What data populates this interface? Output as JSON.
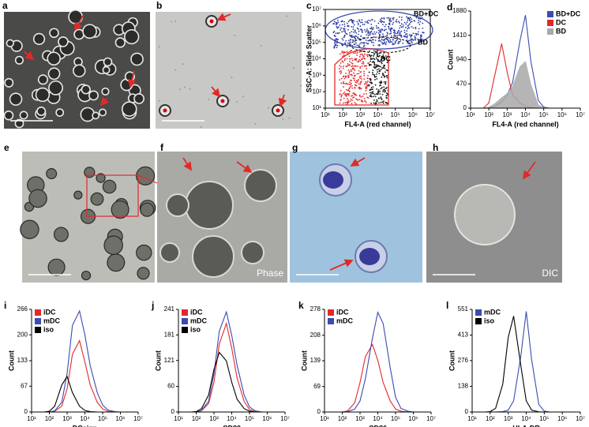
{
  "images": [
    {
      "panel": "a"
    },
    {
      "panel": "b"
    },
    {
      "panel": "e"
    },
    {
      "panel": "f",
      "caption": "Phase"
    },
    {
      "panel": "g"
    },
    {
      "panel": "h",
      "caption": "DIC"
    }
  ],
  "chart_data": [
    {
      "type": "scatter",
      "panel": "c",
      "xlabel": "FL4-A (red channel)",
      "ylabel": "SSC-A: Side Scatter",
      "annotations": [
        "BD+DC",
        "BD",
        "DC"
      ],
      "log": true,
      "xlim": [
        10,
        10000000
      ],
      "ylim": [
        10,
        10000000
      ],
      "xticks": [
        {
          "value": 10,
          "label": "10¹"
        },
        {
          "value": 100,
          "label": "10²"
        },
        {
          "value": 1000,
          "label": "10³"
        },
        {
          "value": 10000,
          "label": "10⁴"
        },
        {
          "value": 100000,
          "label": "10⁵"
        },
        {
          "value": 1000000,
          "label": "10⁶"
        },
        {
          "value": 10000000,
          "label": "10⁷"
        }
      ],
      "yticks": [
        {
          "value": 10,
          "label": "10¹"
        },
        {
          "value": 100,
          "label": "10²"
        },
        {
          "value": 1000,
          "label": "10³"
        },
        {
          "value": 10000,
          "label": "10⁴"
        },
        {
          "value": 100000,
          "label": "10⁵"
        },
        {
          "value": 1000000,
          "label": "10⁶"
        },
        {
          "value": 10000000,
          "label": "10⁷"
        }
      ]
    },
    {
      "type": "histogram",
      "panel": "d",
      "xlabel": "FL4-A (red channel)",
      "ylabel": "Count",
      "log": true,
      "legend": "upper right",
      "x": [
        10,
        20,
        50,
        100,
        200,
        500,
        1000,
        2000,
        5000,
        10000,
        20000,
        50000,
        100000,
        200000,
        500000,
        1000000,
        2000000,
        5000000,
        10000000
      ],
      "series": [
        {
          "name": "BD+DC",
          "color": "#3b4bb0",
          "values": [
            0,
            0,
            0,
            5,
            30,
            120,
            250,
            500,
            1300,
            1800,
            900,
            150,
            20,
            0,
            0,
            0,
            0,
            0,
            0
          ]
        },
        {
          "name": "DC",
          "color": "#e02a2a",
          "values": [
            0,
            0,
            0,
            100,
            600,
            1250,
            700,
            250,
            100,
            40,
            10,
            0,
            0,
            0,
            0,
            0,
            0,
            0,
            0
          ]
        },
        {
          "name": "BD",
          "color": "#a9a9a9",
          "filled": true,
          "values": [
            0,
            0,
            0,
            20,
            80,
            200,
            280,
            420,
            800,
            900,
            450,
            60,
            10,
            0,
            0,
            0,
            0,
            0,
            0
          ]
        }
      ],
      "xlim": [
        10,
        10000000
      ],
      "ylim": [
        0,
        1880
      ],
      "yticks": [
        0,
        470,
        940,
        1410,
        1880
      ],
      "xticks": [
        {
          "value": 10,
          "label": "10¹"
        },
        {
          "value": 100,
          "label": "10²"
        },
        {
          "value": 1000,
          "label": "10³"
        },
        {
          "value": 10000,
          "label": "10⁴"
        },
        {
          "value": 100000,
          "label": "10⁵"
        },
        {
          "value": 1000000,
          "label": "10⁶"
        },
        {
          "value": 10000000,
          "label": "10⁷"
        }
      ]
    },
    {
      "type": "histogram",
      "panel": "i",
      "xlabel": "DCsign",
      "ylabel": "Count",
      "log": true,
      "legend": "upper left",
      "x": [
        10,
        20,
        50,
        100,
        200,
        500,
        1000,
        2000,
        5000,
        10000,
        20000,
        50000,
        100000,
        200000,
        500000,
        1000000,
        2000000,
        5000000,
        10000000
      ],
      "series": [
        {
          "name": "iDC",
          "color": "#e02a2a",
          "values": [
            0,
            0,
            0,
            0,
            2,
            15,
            60,
            150,
            185,
            130,
            70,
            25,
            8,
            2,
            0,
            0,
            0,
            0,
            0
          ]
        },
        {
          "name": "mDC",
          "color": "#3b4bb0",
          "values": [
            0,
            0,
            0,
            0,
            3,
            25,
            100,
            225,
            262,
            200,
            120,
            50,
            18,
            5,
            1,
            0,
            0,
            0,
            0
          ]
        },
        {
          "name": "iso",
          "color": "#000000",
          "values": [
            0,
            0,
            0,
            2,
            15,
            70,
            92,
            50,
            15,
            4,
            1,
            0,
            0,
            0,
            0,
            0,
            0,
            0,
            0
          ]
        }
      ],
      "xlim": [
        10,
        10000000
      ],
      "ylim": [
        0,
        266
      ],
      "yticks": [
        0,
        67,
        133,
        200,
        266
      ],
      "xticks": [
        {
          "value": 10,
          "label": "10¹"
        },
        {
          "value": 100,
          "label": "10²"
        },
        {
          "value": 1000,
          "label": "10³"
        },
        {
          "value": 10000,
          "label": "10⁴"
        },
        {
          "value": 100000,
          "label": "10⁵"
        },
        {
          "value": 1000000,
          "label": "10⁶"
        },
        {
          "value": 10000000,
          "label": "10⁷"
        }
      ]
    },
    {
      "type": "histogram",
      "panel": "j",
      "xlabel": "CD80",
      "ylabel": "Count",
      "log": true,
      "legend": "upper left",
      "x": [
        10,
        20,
        50,
        100,
        200,
        500,
        1000,
        2000,
        5000,
        10000,
        20000,
        50000,
        100000,
        200000,
        500000,
        1000000,
        2000000,
        5000000,
        10000000
      ],
      "series": [
        {
          "name": "iDC",
          "color": "#e02a2a",
          "values": [
            0,
            0,
            0,
            0,
            3,
            20,
            70,
            160,
            208,
            150,
            80,
            25,
            6,
            1,
            0,
            0,
            0,
            0,
            0
          ]
        },
        {
          "name": "mDC",
          "color": "#3b4bb0",
          "values": [
            0,
            0,
            0,
            0,
            4,
            25,
            90,
            190,
            235,
            180,
            110,
            40,
            12,
            3,
            0,
            0,
            0,
            0,
            0
          ]
        },
        {
          "name": "iso",
          "color": "#000000",
          "values": [
            0,
            0,
            0,
            1,
            8,
            40,
            100,
            140,
            120,
            70,
            30,
            8,
            2,
            0,
            0,
            0,
            0,
            0,
            0
          ]
        }
      ],
      "xlim": [
        10,
        10000000
      ],
      "ylim": [
        0,
        241
      ],
      "yticks": [
        0,
        60,
        121,
        181,
        241
      ],
      "xticks": [
        {
          "value": 10,
          "label": "10¹"
        },
        {
          "value": 100,
          "label": "10²"
        },
        {
          "value": 1000,
          "label": "10³"
        },
        {
          "value": 10000,
          "label": "10⁴"
        },
        {
          "value": 100000,
          "label": "10⁵"
        },
        {
          "value": 1000000,
          "label": "10⁶"
        },
        {
          "value": 10000000,
          "label": "10⁷"
        }
      ]
    },
    {
      "type": "histogram",
      "panel": "k",
      "xlabel": "CD86",
      "ylabel": "Count",
      "log": true,
      "legend": "upper left",
      "x": [
        10,
        20,
        50,
        100,
        200,
        500,
        1000,
        2000,
        5000,
        10000,
        20000,
        50000,
        100000,
        200000,
        500000,
        1000000,
        2000000,
        5000000,
        10000000
      ],
      "series": [
        {
          "name": "iDC",
          "color": "#e02a2a",
          "values": [
            0,
            0,
            0,
            0,
            3,
            25,
            80,
            150,
            183,
            140,
            80,
            30,
            8,
            2,
            0,
            0,
            0,
            0,
            0
          ]
        },
        {
          "name": "mDC",
          "color": "#3b4bb0",
          "values": [
            0,
            0,
            0,
            0,
            1,
            8,
            30,
            90,
            200,
            270,
            240,
            120,
            40,
            10,
            2,
            0,
            0,
            0,
            0
          ]
        }
      ],
      "xlim": [
        10,
        10000000
      ],
      "ylim": [
        0,
        278
      ],
      "yticks": [
        0,
        69,
        139,
        208,
        278
      ],
      "xticks": [
        {
          "value": 10,
          "label": "10¹"
        },
        {
          "value": 100,
          "label": "10²"
        },
        {
          "value": 1000,
          "label": "10³"
        },
        {
          "value": 10000,
          "label": "10⁴"
        },
        {
          "value": 100000,
          "label": "10⁵"
        },
        {
          "value": 1000000,
          "label": "10⁶"
        },
        {
          "value": 10000000,
          "label": "10⁷"
        }
      ]
    },
    {
      "type": "histogram",
      "panel": "l",
      "xlabel": "HLA-DR",
      "ylabel": "Count",
      "log": true,
      "legend": "upper left",
      "x": [
        10,
        20,
        50,
        100,
        200,
        500,
        1000,
        2000,
        5000,
        10000,
        20000,
        50000,
        100000,
        200000,
        500000,
        1000000,
        2000000,
        5000000,
        10000000
      ],
      "series": [
        {
          "name": "mDC",
          "color": "#3b4bb0",
          "values": [
            0,
            0,
            0,
            0,
            0,
            2,
            10,
            60,
            300,
            540,
            280,
            40,
            5,
            0,
            0,
            0,
            0,
            0,
            0
          ]
        },
        {
          "name": "iso",
          "color": "#000000",
          "values": [
            0,
            0,
            0,
            2,
            20,
            150,
            400,
            515,
            250,
            60,
            10,
            1,
            0,
            0,
            0,
            0,
            0,
            0,
            0
          ]
        }
      ],
      "xlim": [
        10,
        10000000
      ],
      "ylim": [
        0,
        551
      ],
      "yticks": [
        0,
        138,
        276,
        413,
        551
      ],
      "xticks": [
        {
          "value": 10,
          "label": "10¹"
        },
        {
          "value": 100,
          "label": "10²"
        },
        {
          "value": 1000,
          "label": "10³"
        },
        {
          "value": 10000,
          "label": "10⁴"
        },
        {
          "value": 100000,
          "label": "10⁵"
        },
        {
          "value": 1000000,
          "label": "10⁶"
        },
        {
          "value": 10000000,
          "label": "10⁷"
        }
      ]
    }
  ]
}
